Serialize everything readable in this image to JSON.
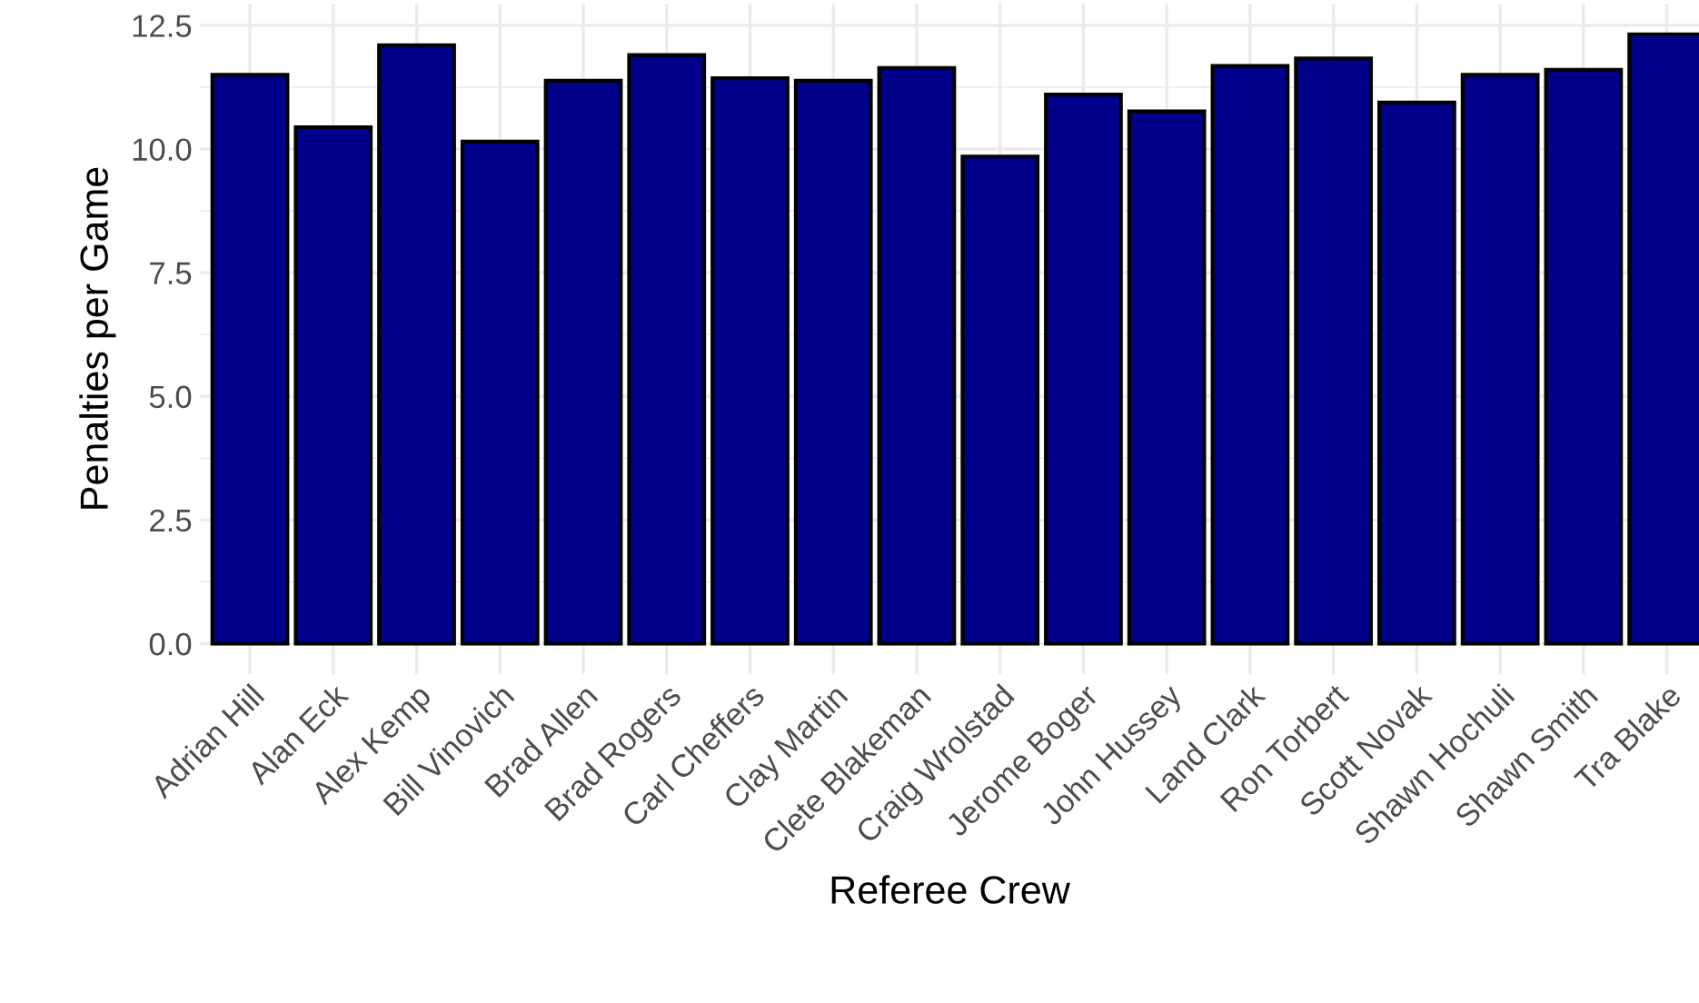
{
  "chart_data": {
    "type": "bar",
    "xlabel": "Referee Crew",
    "ylabel": "Penalties per Game",
    "categories": [
      "Adrian Hill",
      "Alan Eck",
      "Alex Kemp",
      "Bill Vinovich",
      "Brad Allen",
      "Brad Rogers",
      "Carl Cheffers",
      "Clay Martin",
      "Clete Blakeman",
      "Craig Wrolstad",
      "Jerome Boger",
      "John Hussey",
      "Land Clark",
      "Ron Torbert",
      "Scott Novak",
      "Shawn Hochuli",
      "Shawn Smith",
      "Tra Blake"
    ],
    "values": [
      11.5,
      10.44,
      12.1,
      10.15,
      11.38,
      11.9,
      11.43,
      11.38,
      11.64,
      9.85,
      11.1,
      10.76,
      11.68,
      11.83,
      10.94,
      11.5,
      11.6,
      12.32
    ],
    "color": "#00008b",
    "ylim": [
      -0.616,
      12.94
    ],
    "yticks": [
      {
        "value": 0,
        "label": "0.0"
      },
      2.5,
      {
        "value": 5,
        "label": "5.0"
      },
      7.5,
      {
        "value": 10,
        "label": "10.0"
      },
      12.5
    ],
    "grid": true
  }
}
